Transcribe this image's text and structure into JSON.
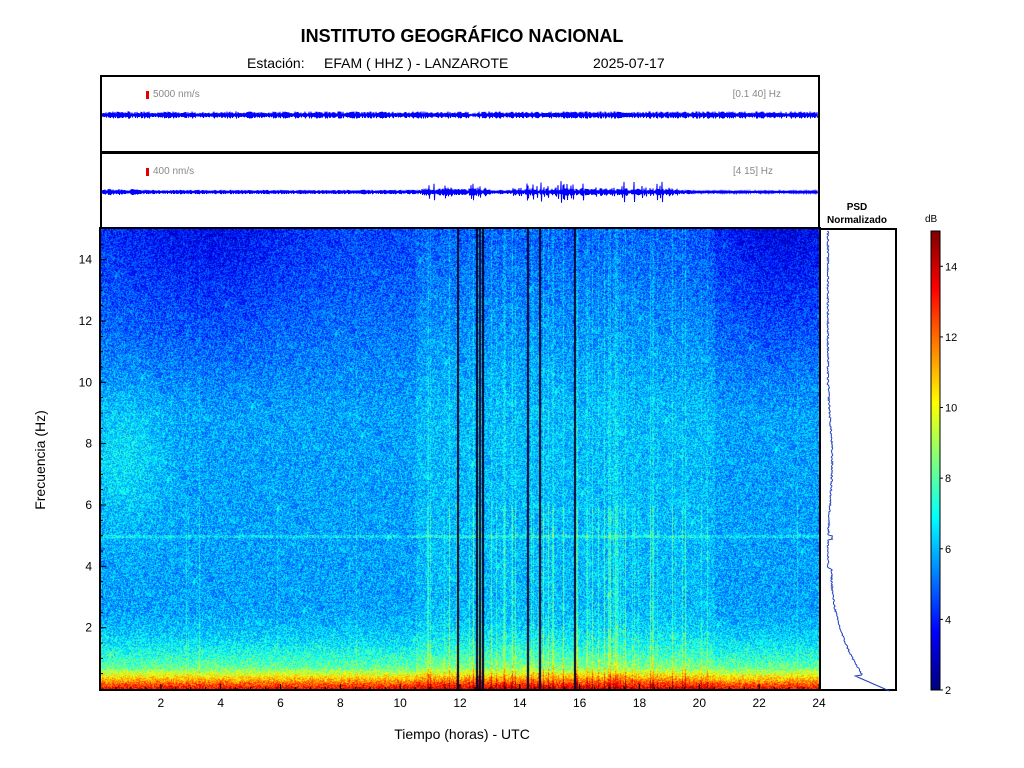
{
  "header": {
    "title": "INSTITUTO GEOGRÁFICO NACIONAL",
    "station_prefix": "Estación:",
    "station": "EFAM ( HHZ ) - LANZAROTE",
    "date": "2025-07-17"
  },
  "traces": [
    {
      "scale": "5000 nm/s",
      "band": "[0.1 40] Hz"
    },
    {
      "scale": "400 nm/s",
      "band": "[4 15] Hz"
    }
  ],
  "chart_data": {
    "type": "heatmap",
    "xlabel": "Tiempo (horas) - UTC",
    "ylabel": "Frecuencia (Hz)",
    "xlim": [
      0,
      24
    ],
    "ylim": [
      0,
      15
    ],
    "x_ticks": [
      2,
      4,
      6,
      8,
      10,
      12,
      14,
      16,
      18,
      20,
      22,
      24
    ],
    "y_ticks": [
      2,
      4,
      6,
      8,
      10,
      12,
      14
    ],
    "colorbar": {
      "label": "dB",
      "range": [
        2,
        15
      ],
      "ticks": [
        2,
        4,
        6,
        8,
        10,
        12,
        14
      ],
      "colormap": "jet"
    },
    "psd_title_line1": "PSD",
    "psd_title_line2": "Normalizado",
    "gap_hours": [
      11.9,
      12.55,
      12.65,
      12.75,
      14.25,
      14.65,
      15.8
    ]
  },
  "colors": {
    "trace": "#0000ff",
    "psd_line": "#1f3fbf",
    "scale_bar": "#e00000"
  }
}
